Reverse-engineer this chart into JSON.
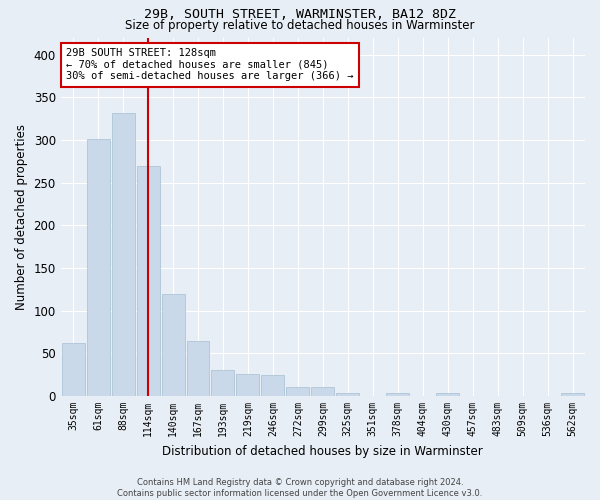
{
  "title1": "29B, SOUTH STREET, WARMINSTER, BA12 8DZ",
  "title2": "Size of property relative to detached houses in Warminster",
  "xlabel": "Distribution of detached houses by size in Warminster",
  "ylabel": "Number of detached properties",
  "footer1": "Contains HM Land Registry data © Crown copyright and database right 2024.",
  "footer2": "Contains public sector information licensed under the Open Government Licence v3.0.",
  "annotation_title": "29B SOUTH STREET: 128sqm",
  "annotation_line1": "← 70% of detached houses are smaller (845)",
  "annotation_line2": "30% of semi-detached houses are larger (366) →",
  "bin_labels": [
    "35sqm",
    "61sqm",
    "88sqm",
    "114sqm",
    "140sqm",
    "167sqm",
    "193sqm",
    "219sqm",
    "246sqm",
    "272sqm",
    "299sqm",
    "325sqm",
    "351sqm",
    "378sqm",
    "404sqm",
    "430sqm",
    "457sqm",
    "483sqm",
    "509sqm",
    "536sqm",
    "562sqm"
  ],
  "bar_heights": [
    62,
    301,
    332,
    270,
    119,
    64,
    30,
    26,
    25,
    11,
    11,
    4,
    0,
    4,
    0,
    4,
    0,
    0,
    0,
    0,
    3
  ],
  "bar_color": "#c9d9ea",
  "bar_edge_color": "#aec6d8",
  "vline_position": 3.5,
  "vline_color": "#cc0000",
  "annotation_box_color": "#ffffff",
  "annotation_box_edge": "#cc0000",
  "ylim": [
    0,
    420
  ],
  "yticks": [
    0,
    50,
    100,
    150,
    200,
    250,
    300,
    350,
    400
  ],
  "background_color": "#e8eef5",
  "grid_color": "#ffffff"
}
